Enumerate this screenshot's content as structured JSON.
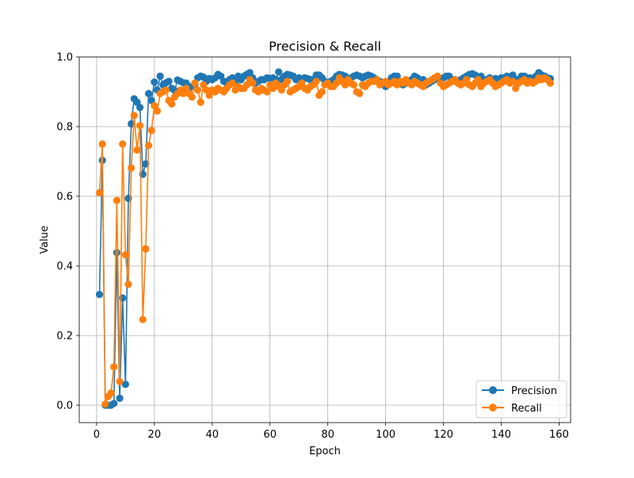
{
  "chart_data": {
    "type": "line",
    "title": "Precision & Recall",
    "xlabel": "Epoch",
    "ylabel": "Value",
    "xlim": [
      -6,
      164
    ],
    "ylim": [
      -0.05,
      1.0
    ],
    "xticks": [
      0,
      20,
      40,
      60,
      80,
      100,
      120,
      140,
      160
    ],
    "yticks": [
      0.0,
      0.2,
      0.4,
      0.6,
      0.8,
      1.0
    ],
    "grid": true,
    "legend_position": "lower right",
    "series": [
      {
        "name": "Precision",
        "color": "#1f77b4",
        "x": [
          1,
          2,
          3,
          4,
          5,
          6,
          7,
          8,
          9,
          10,
          11,
          12,
          13,
          14,
          15,
          16,
          17,
          18,
          19,
          20,
          21,
          22,
          23,
          24,
          25,
          26,
          27,
          28,
          29,
          30,
          31,
          32,
          33,
          34,
          35,
          36,
          37,
          38,
          39,
          40,
          41,
          42,
          43,
          44,
          45,
          46,
          47,
          48,
          49,
          50,
          51,
          52,
          53,
          54,
          55,
          56,
          57,
          58,
          59,
          60,
          61,
          62,
          63,
          64,
          65,
          66,
          67,
          68,
          69,
          70,
          71,
          72,
          73,
          74,
          75,
          76,
          77,
          78,
          79,
          80,
          81,
          82,
          83,
          84,
          85,
          86,
          87,
          88,
          89,
          90,
          91,
          92,
          93,
          94,
          95,
          96,
          97,
          98,
          99,
          100,
          101,
          102,
          103,
          104,
          105,
          106,
          107,
          108,
          109,
          110,
          111,
          112,
          113,
          114,
          115,
          116,
          117,
          118,
          119,
          120,
          121,
          122,
          123,
          124,
          125,
          126,
          127,
          128,
          129,
          130,
          131,
          132,
          133,
          134,
          135,
          136,
          137,
          138,
          139,
          140,
          141,
          142,
          143,
          144,
          145,
          146,
          147,
          148,
          149,
          150,
          151,
          152,
          153,
          154,
          155,
          156,
          157
        ],
        "values": [
          0.318,
          0.703,
          0.0,
          0.0,
          0.0,
          0.005,
          0.438,
          0.02,
          0.308,
          0.06,
          0.594,
          0.808,
          0.88,
          0.87,
          0.855,
          0.663,
          0.693,
          0.895,
          0.875,
          0.928,
          0.905,
          0.945,
          0.92,
          0.926,
          0.93,
          0.91,
          0.904,
          0.934,
          0.93,
          0.926,
          0.925,
          0.91,
          0.915,
          0.92,
          0.94,
          0.945,
          0.942,
          0.93,
          0.938,
          0.935,
          0.94,
          0.95,
          0.945,
          0.93,
          0.925,
          0.935,
          0.94,
          0.93,
          0.945,
          0.935,
          0.945,
          0.95,
          0.955,
          0.94,
          0.925,
          0.93,
          0.935,
          0.935,
          0.94,
          0.938,
          0.94,
          0.935,
          0.957,
          0.935,
          0.945,
          0.95,
          0.948,
          0.945,
          0.935,
          0.94,
          0.937,
          0.94,
          0.938,
          0.935,
          0.935,
          0.948,
          0.948,
          0.94,
          0.93,
          0.925,
          0.93,
          0.935,
          0.945,
          0.95,
          0.948,
          0.945,
          0.935,
          0.94,
          0.945,
          0.948,
          0.945,
          0.94,
          0.945,
          0.948,
          0.945,
          0.94,
          0.935,
          0.93,
          0.925,
          0.915,
          0.925,
          0.94,
          0.945,
          0.945,
          0.93,
          0.92,
          0.925,
          0.93,
          0.935,
          0.945,
          0.94,
          0.93,
          0.935,
          0.92,
          0.925,
          0.93,
          0.935,
          0.94,
          0.935,
          0.94,
          0.945,
          0.945,
          0.935,
          0.935,
          0.93,
          0.935,
          0.94,
          0.945,
          0.95,
          0.952,
          0.948,
          0.935,
          0.945,
          0.935,
          0.935,
          0.94,
          0.935,
          0.938,
          0.935,
          0.94,
          0.94,
          0.945,
          0.94,
          0.948,
          0.935,
          0.935,
          0.945,
          0.945,
          0.94,
          0.94,
          0.935,
          0.945,
          0.955,
          0.948,
          0.945,
          0.94,
          0.938
        ]
      },
      {
        "name": "Recall",
        "color": "#ff7f0e",
        "x": [
          1,
          2,
          3,
          4,
          5,
          6,
          7,
          8,
          9,
          10,
          11,
          12,
          13,
          14,
          15,
          16,
          17,
          18,
          19,
          20,
          21,
          22,
          23,
          24,
          25,
          26,
          27,
          28,
          29,
          30,
          31,
          32,
          33,
          34,
          35,
          36,
          37,
          38,
          39,
          40,
          41,
          42,
          43,
          44,
          45,
          46,
          47,
          48,
          49,
          50,
          51,
          52,
          53,
          54,
          55,
          56,
          57,
          58,
          59,
          60,
          61,
          62,
          63,
          64,
          65,
          66,
          67,
          68,
          69,
          70,
          71,
          72,
          73,
          74,
          75,
          76,
          77,
          78,
          79,
          80,
          81,
          82,
          83,
          84,
          85,
          86,
          87,
          88,
          89,
          90,
          91,
          92,
          93,
          94,
          95,
          96,
          97,
          98,
          99,
          100,
          101,
          102,
          103,
          104,
          105,
          106,
          107,
          108,
          109,
          110,
          111,
          112,
          113,
          114,
          115,
          116,
          117,
          118,
          119,
          120,
          121,
          122,
          123,
          124,
          125,
          126,
          127,
          128,
          129,
          130,
          131,
          132,
          133,
          134,
          135,
          136,
          137,
          138,
          139,
          140,
          141,
          142,
          143,
          144,
          145,
          146,
          147,
          148,
          149,
          150,
          151,
          152,
          153,
          154,
          155,
          156,
          157
        ],
        "values": [
          0.61,
          0.75,
          0.003,
          0.025,
          0.035,
          0.11,
          0.588,
          0.068,
          0.75,
          0.432,
          0.347,
          0.681,
          0.832,
          0.733,
          0.803,
          0.246,
          0.449,
          0.746,
          0.789,
          0.86,
          0.845,
          0.895,
          0.9,
          0.905,
          0.875,
          0.865,
          0.885,
          0.895,
          0.905,
          0.895,
          0.91,
          0.895,
          0.885,
          0.925,
          0.905,
          0.87,
          0.92,
          0.905,
          0.89,
          0.905,
          0.9,
          0.91,
          0.905,
          0.9,
          0.91,
          0.92,
          0.925,
          0.905,
          0.915,
          0.91,
          0.91,
          0.92,
          0.935,
          0.925,
          0.905,
          0.9,
          0.91,
          0.905,
          0.9,
          0.92,
          0.91,
          0.925,
          0.915,
          0.905,
          0.92,
          0.93,
          0.9,
          0.905,
          0.91,
          0.915,
          0.925,
          0.91,
          0.905,
          0.915,
          0.92,
          0.93,
          0.89,
          0.9,
          0.92,
          0.925,
          0.915,
          0.915,
          0.925,
          0.94,
          0.93,
          0.92,
          0.935,
          0.925,
          0.92,
          0.9,
          0.895,
          0.92,
          0.915,
          0.925,
          0.93,
          0.93,
          0.935,
          0.92,
          0.925,
          0.93,
          0.92,
          0.925,
          0.93,
          0.92,
          0.93,
          0.925,
          0.935,
          0.925,
          0.92,
          0.93,
          0.925,
          0.92,
          0.915,
          0.925,
          0.93,
          0.935,
          0.94,
          0.945,
          0.925,
          0.915,
          0.92,
          0.925,
          0.93,
          0.935,
          0.925,
          0.92,
          0.925,
          0.935,
          0.92,
          0.915,
          0.925,
          0.935,
          0.915,
          0.925,
          0.93,
          0.935,
          0.925,
          0.915,
          0.92,
          0.925,
          0.93,
          0.935,
          0.925,
          0.93,
          0.91,
          0.925,
          0.93,
          0.935,
          0.925,
          0.93,
          0.925,
          0.93,
          0.94,
          0.935,
          0.94,
          0.935,
          0.925
        ]
      }
    ]
  }
}
